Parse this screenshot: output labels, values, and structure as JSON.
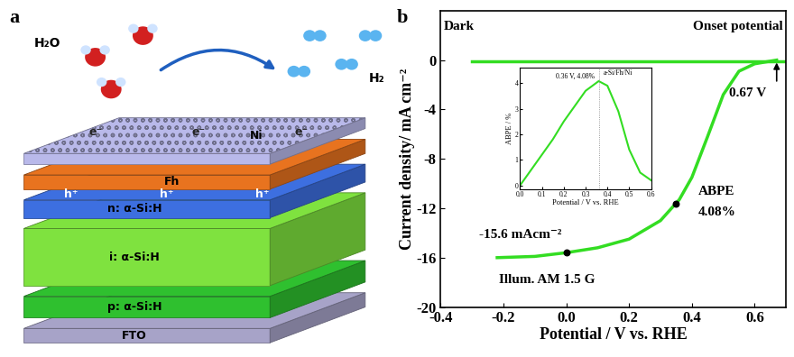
{
  "diagram": {
    "label": "a",
    "reactant": "H₂O",
    "product": "H₂",
    "electrons": [
      "e⁻",
      "e⁻",
      "e⁻"
    ],
    "holes": [
      "h⁺",
      "h⁺",
      "h⁺"
    ],
    "layers": [
      {
        "name": "Ni",
        "color": "#b9b9ea"
      },
      {
        "name": "Fh",
        "color": "#e8731f"
      },
      {
        "name": "n: α-Si:H",
        "color": "#3d6fe0"
      },
      {
        "name": "i: α-Si:H",
        "color": "#7fe23f"
      },
      {
        "name": "p: α-Si:H",
        "color": "#2fc02f"
      },
      {
        "name": "FTO",
        "color": "#a7a3c8"
      }
    ]
  },
  "chart_data": [
    {
      "type": "line",
      "title": "b",
      "x_label": "Potential / V vs. RHE",
      "y_label": "Current density/ mA cm⁻²",
      "xlim": [
        -0.4,
        0.7
      ],
      "xticks": [
        -0.4,
        -0.2,
        0.0,
        0.2,
        0.4,
        0.6
      ],
      "ylim": [
        -20,
        4
      ],
      "yticks": [
        0,
        -4,
        -8,
        -12,
        -16,
        -20
      ],
      "series": [
        {
          "name": "Dark",
          "color": "#33dd22",
          "x": [
            -0.3,
            0.0,
            0.3,
            0.6,
            0.7
          ],
          "values": [
            -0.1,
            -0.1,
            -0.1,
            -0.1,
            -0.1
          ]
        },
        {
          "name": "Illum. AM 1.5 G",
          "color": "#33dd22",
          "x": [
            -0.22,
            -0.1,
            0.0,
            0.1,
            0.2,
            0.3,
            0.36,
            0.4,
            0.45,
            0.5,
            0.55,
            0.6,
            0.67
          ],
          "values": [
            -16.0,
            -15.9,
            -15.6,
            -15.2,
            -14.5,
            -13.0,
            -11.3,
            -9.5,
            -6.2,
            -2.8,
            -0.9,
            -0.3,
            0.0
          ]
        }
      ],
      "points": [
        {
          "x": 0.0,
          "y": -15.6
        },
        {
          "x": 0.35,
          "y": -11.6
        }
      ],
      "onset": {
        "x": 0.67,
        "y": 0
      },
      "annotations": [
        "Onset potential",
        "0.67 V",
        "ABPE",
        "4.08%",
        "-15.6 mAcm⁻²"
      ]
    },
    {
      "type": "line",
      "x_label": "Potential / V vs. RHE",
      "y_label": "ABPE / %",
      "xlim": [
        0.0,
        0.6
      ],
      "xticks": [
        0.0,
        0.1,
        0.2,
        0.3,
        0.4,
        0.5,
        0.6
      ],
      "ylim": [
        -0.15,
        4.6
      ],
      "yticks": [
        0,
        1,
        2,
        3,
        4
      ],
      "series": [
        {
          "name": "a-Si/Fh/Ni",
          "color": "#33dd22",
          "x": [
            0.0,
            0.05,
            0.1,
            0.15,
            0.2,
            0.25,
            0.3,
            0.36,
            0.4,
            0.45,
            0.5,
            0.55,
            0.6
          ],
          "values": [
            0.0,
            0.6,
            1.2,
            1.8,
            2.5,
            3.1,
            3.7,
            4.08,
            3.9,
            2.9,
            1.4,
            0.5,
            0.2
          ]
        }
      ],
      "peak": {
        "x": 0.36,
        "y": 4.08
      },
      "annotations": [
        "0.36 V, 4.08%"
      ]
    }
  ]
}
